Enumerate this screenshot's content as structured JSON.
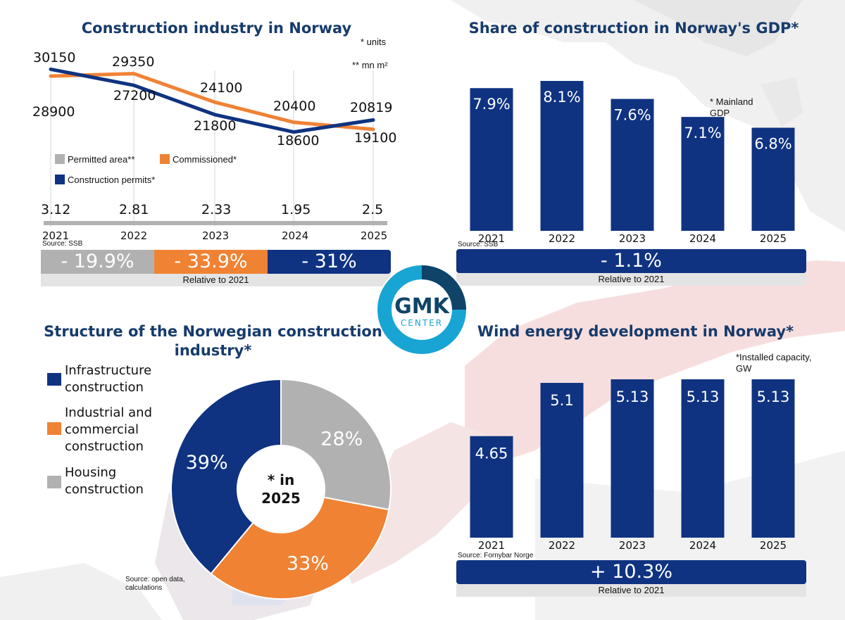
{
  "colors": {
    "navy": "#0f3381",
    "orange": "#f08234",
    "gray": "#b1b1b1",
    "title": "#173b6b",
    "teal": "#19a5d3",
    "dark_teal": "#0f4468"
  },
  "logo": {
    "line1": "GMK",
    "line2": "CENTER"
  },
  "panel1": {
    "title": "Construction industry in Norway",
    "note_units": "* units",
    "note_area": "** mn m²",
    "legend": {
      "area": "Permitted area**",
      "commissioned": "Commissioned*",
      "permits": "Construction permits*"
    },
    "source": "Source: SSB",
    "strip": [
      "- 19.9%",
      "- 33.9%",
      "- 31%"
    ],
    "relative": "Relative to 2021"
  },
  "panel2": {
    "title": "Share of construction in Norway's GDP*",
    "note": "* Mainland GDP",
    "source": "Source: SSB",
    "strip": "- 1.1%",
    "relative": "Relative to 2021"
  },
  "panel3": {
    "title": "Structure of the Norwegian construction industry*",
    "center_label": "* in 2025",
    "legend": [
      "Infrastructure construction",
      "Industrial and commercial construction",
      "Housing construction"
    ],
    "source": "Source: open data, calculations"
  },
  "panel4": {
    "title": "Wind energy development in Norway*",
    "note": "*Installed capacity, GW",
    "source": "Source: Fornybar Norge",
    "strip": "+ 10.3%",
    "relative": "Relative to 2021"
  },
  "chart_data": [
    {
      "type": "line",
      "title": "Construction industry in Norway",
      "x": [
        "2021",
        "2022",
        "2023",
        "2024",
        "2025"
      ],
      "series": [
        {
          "name": "Commissioned*",
          "values": [
            28900,
            29350,
            24100,
            20400,
            19100
          ],
          "color": "#f08234"
        },
        {
          "name": "Construction permits*",
          "values": [
            30150,
            27200,
            21800,
            18600,
            20819
          ],
          "color": "#0f3381"
        },
        {
          "name": "Permitted area**",
          "values": [
            3.12,
            2.81,
            2.33,
            1.95,
            2.5
          ],
          "color": "#b1b1b1"
        }
      ],
      "ylim": [
        17000,
        31500
      ],
      "legend": "bottom-left"
    },
    {
      "type": "bar",
      "title": "Share of construction in Norway's GDP*",
      "categories": [
        "2021",
        "2022",
        "2023",
        "2024",
        "2025"
      ],
      "values": [
        7.9,
        8.1,
        7.6,
        7.1,
        6.8
      ],
      "labels": [
        "7.9%",
        "8.1%",
        "7.6%",
        "7.1%",
        "6.8%"
      ],
      "ylim": [
        5.5,
        8.1
      ]
    },
    {
      "type": "pie",
      "title": "Structure of the Norwegian construction industry*",
      "categories": [
        "Infrastructure construction",
        "Industrial and commercial construction",
        "Housing construction"
      ],
      "values": [
        39,
        33,
        28
      ],
      "labels": [
        "39%",
        "33%",
        "28%"
      ]
    },
    {
      "type": "bar",
      "title": "Wind energy development in Norway*",
      "categories": [
        "2021",
        "2022",
        "2023",
        "2024",
        "2025"
      ],
      "values": [
        4.65,
        5.1,
        5.13,
        5.13,
        5.13
      ],
      "labels": [
        "4.65",
        "5.1",
        "5.13",
        "5.13",
        "5.13"
      ],
      "ylim": [
        4.25,
        5.13
      ]
    }
  ]
}
